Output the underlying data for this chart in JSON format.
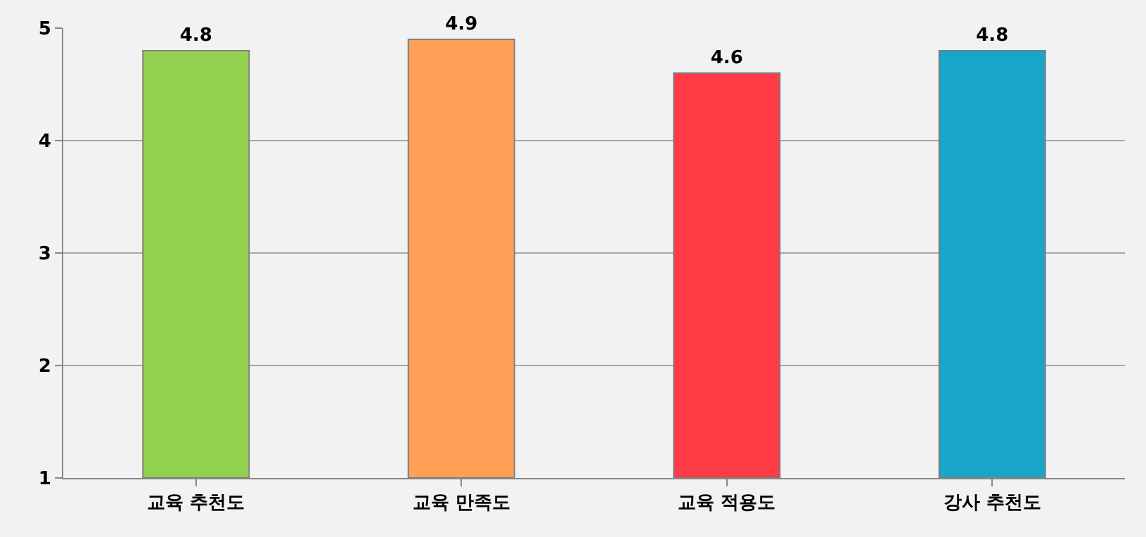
{
  "chart_data": {
    "type": "bar",
    "categories": [
      "교육 추천도",
      "교육 만족도",
      "교육 적용도",
      "강사 추천도"
    ],
    "values": [
      4.8,
      4.9,
      4.6,
      4.8
    ],
    "colors": [
      "#92d050",
      "#ff9f55",
      "#ff3b45",
      "#17a5c9"
    ],
    "ylim": [
      1,
      5
    ],
    "yticks": [
      1,
      2,
      3,
      4,
      5
    ],
    "grid": "y",
    "data_labels": true
  }
}
